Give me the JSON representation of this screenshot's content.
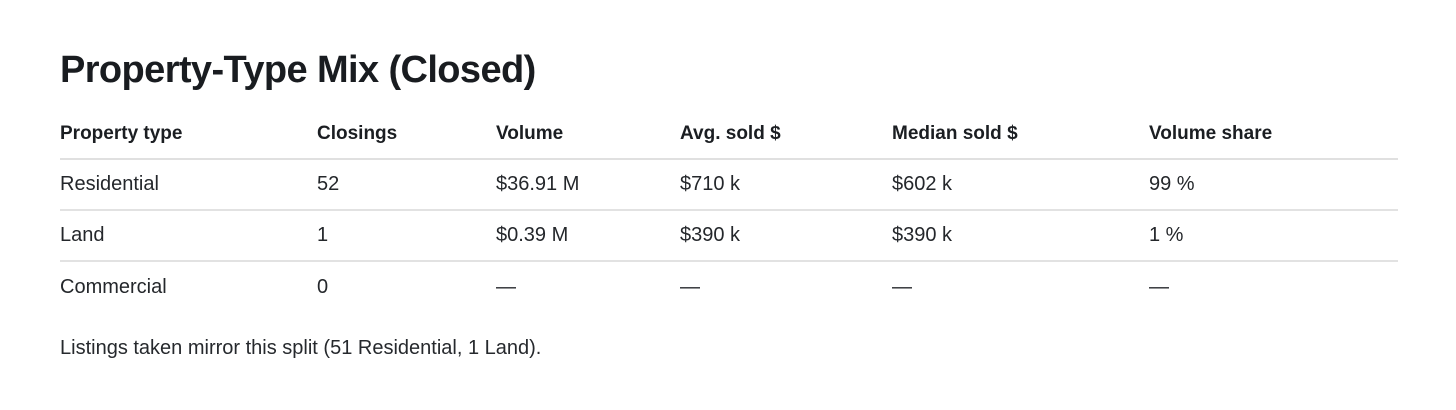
{
  "title": "Property-Type Mix (Closed)",
  "table": {
    "columns": [
      "Property type",
      "Closings",
      "Volume",
      "Avg. sold $",
      "Median sold $",
      "Volume share"
    ],
    "rows": [
      [
        "Residential",
        "52",
        "$36.91 M",
        "$710 k",
        "$602 k",
        "99 %"
      ],
      [
        "Land",
        "1",
        "$0.39 M",
        "$390 k",
        "$390 k",
        "1 %"
      ],
      [
        "Commercial",
        "0",
        "—",
        "—",
        "—",
        "—"
      ]
    ]
  },
  "footnote": "Listings taken mirror this split (51 Residential, 1 Land).",
  "colors": {
    "background": "#ffffff",
    "title_text": "#191c20",
    "body_text": "#24272b",
    "divider": "#e0e0e0"
  },
  "chart_data": {
    "type": "table",
    "title": "Property-Type Mix (Closed)",
    "columns": [
      "Property type",
      "Closings",
      "Volume",
      "Avg. sold $",
      "Median sold $",
      "Volume share"
    ],
    "rows": [
      {
        "property_type": "Residential",
        "closings": 52,
        "volume_musd": 36.91,
        "avg_sold_kusd": 710,
        "median_sold_kusd": 602,
        "volume_share_pct": 99
      },
      {
        "property_type": "Land",
        "closings": 1,
        "volume_musd": 0.39,
        "avg_sold_kusd": 390,
        "median_sold_kusd": 390,
        "volume_share_pct": 1
      },
      {
        "property_type": "Commercial",
        "closings": 0,
        "volume_musd": null,
        "avg_sold_kusd": null,
        "median_sold_kusd": null,
        "volume_share_pct": null
      }
    ],
    "annotations": [
      "Listings taken mirror this split (51 Residential, 1 Land)."
    ],
    "layout": {
      "grid": "horizontal row dividers only",
      "alignment": "all columns left-aligned",
      "null_display": "—"
    }
  }
}
